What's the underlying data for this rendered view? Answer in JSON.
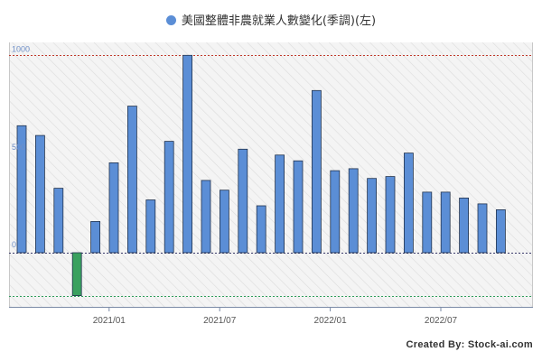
{
  "chart_data": {
    "type": "bar",
    "series": [
      {
        "name": "美國整體非農就業人數變化(季調)(左)",
        "color": "#5b8ed6",
        "negative_color": "#3aa15f",
        "values": [
          650,
          600,
          330,
          -220,
          160,
          460,
          750,
          270,
          570,
          1010,
          370,
          320,
          530,
          240,
          500,
          470,
          830,
          420,
          430,
          380,
          390,
          510,
          310,
          310,
          280,
          250,
          220
        ]
      }
    ],
    "x_ticks": [
      {
        "index": 4,
        "label": "2021/01"
      },
      {
        "index": 10,
        "label": "2021/07"
      },
      {
        "index": 16,
        "label": "2022/01"
      },
      {
        "index": 22,
        "label": "2022/07"
      }
    ],
    "y_ticks": [
      {
        "value": 1000,
        "label": "1000"
      },
      {
        "value": 500,
        "label": "500"
      },
      {
        "value": 0,
        "label": "0"
      }
    ],
    "ylim": [
      -280,
      1080
    ],
    "reference_lines": [
      {
        "value": 1010,
        "color": "#c0392b"
      },
      {
        "value": 0,
        "color": "#3a3a6a"
      },
      {
        "value": -220,
        "color": "#2e9e5a"
      }
    ],
    "grid": false,
    "legend_position": "top-center"
  },
  "footer": {
    "credit": "Created By: Stock-ai.com"
  }
}
